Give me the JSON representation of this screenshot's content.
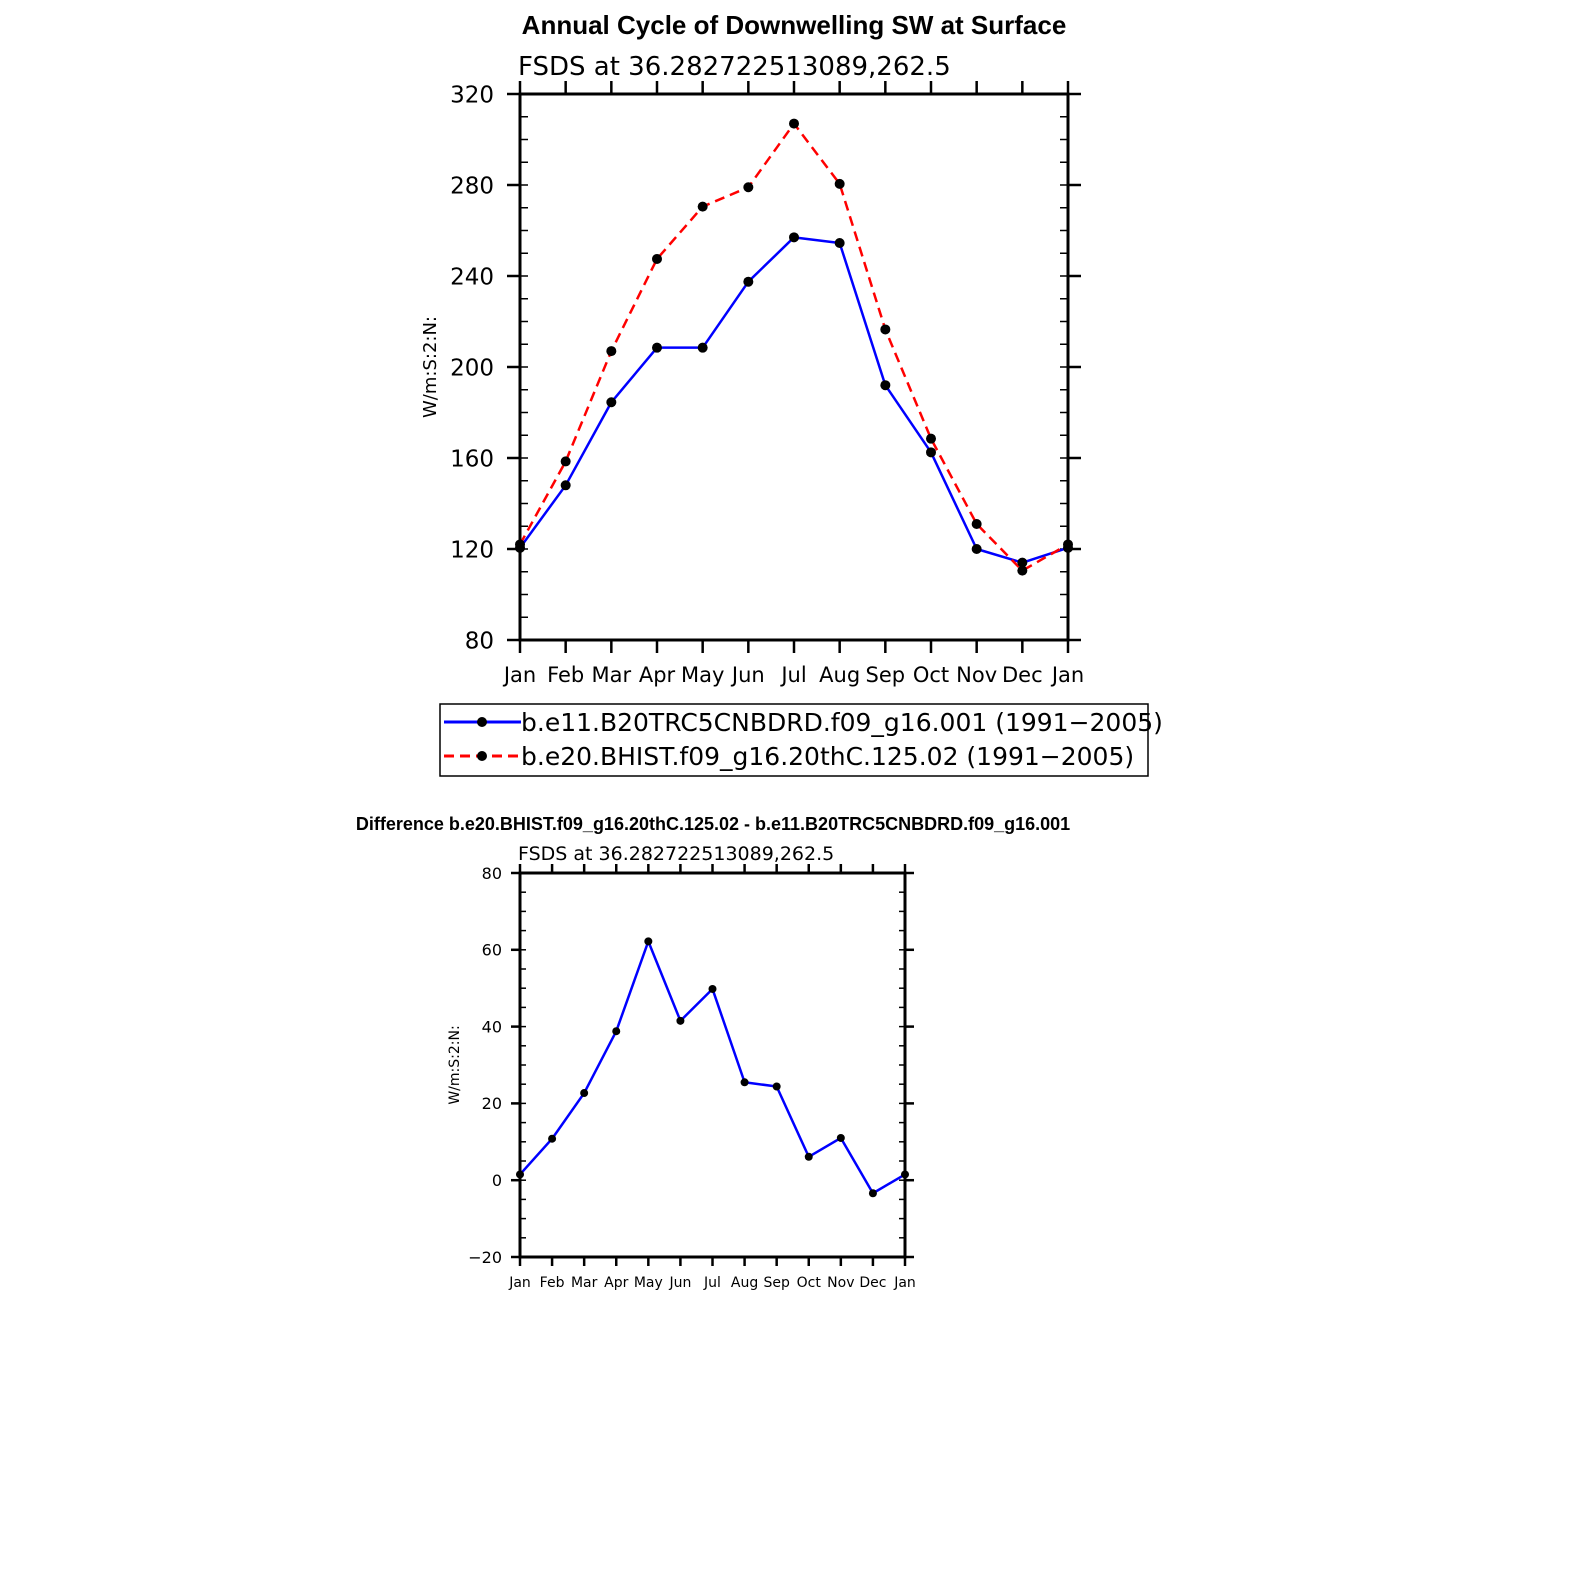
{
  "page": {
    "background": "#ffffff"
  },
  "colors": {
    "series1": "#0000ff",
    "series2": "#ff0000",
    "axis": "#000000",
    "marker": "#000000"
  },
  "chart_data": [
    {
      "type": "line",
      "title": "Annual Cycle of Downwelling SW at Surface",
      "subtitle": "FSDS at 36.282722513089,262.5",
      "ylabel": "W/m:S:2:N:",
      "xlabel": "",
      "categories": [
        "Jan",
        "Feb",
        "Mar",
        "Apr",
        "May",
        "Jun",
        "Jul",
        "Aug",
        "Sep",
        "Oct",
        "Nov",
        "Dec",
        "Jan"
      ],
      "ylim": [
        80,
        320
      ],
      "yticks": [
        80,
        120,
        160,
        200,
        240,
        280,
        320
      ],
      "grid": false,
      "legend": "bottom",
      "series": [
        {
          "name": "b.e11.B20TRC5CNBDRD.f09_g16.001 (1991−2005)",
          "style": "solid",
          "color": "#0000ff",
          "values": [
            120.5,
            148,
            184.5,
            208.5,
            208.5,
            237.5,
            257,
            254.5,
            192,
            162.5,
            120,
            114,
            120.5
          ]
        },
        {
          "name": "b.e20.BHIST.f09_g16.20thC.125.02 (1991−2005)",
          "style": "dashed",
          "color": "#ff0000",
          "values": [
            122,
            158.5,
            207,
            247.5,
            270.5,
            279,
            307,
            280.5,
            216.5,
            168.5,
            131,
            110.5,
            122
          ]
        }
      ]
    },
    {
      "type": "line",
      "title": "Difference b.e20.BHIST.f09_g16.20thC.125.02 - b.e11.B20TRC5CNBDRD.f09_g16.001",
      "subtitle": "FSDS at 36.282722513089,262.5",
      "ylabel": "W/m:S:2:N:",
      "xlabel": "",
      "categories": [
        "Jan",
        "Feb",
        "Mar",
        "Apr",
        "May",
        "Jun",
        "Jul",
        "Aug",
        "Sep",
        "Oct",
        "Nov",
        "Dec",
        "Jan"
      ],
      "ylim": [
        -20,
        80
      ],
      "yticks": [
        -20,
        0,
        20,
        40,
        60,
        80
      ],
      "ytick_labels": [
        "−20",
        "0",
        "20",
        "40",
        "60",
        "80"
      ],
      "grid": false,
      "series": [
        {
          "style": "solid",
          "color": "#0000ff",
          "values": [
            1.5,
            10.8,
            22.7,
            38.8,
            62.2,
            41.5,
            49.8,
            25.5,
            24.4,
            6.1,
            11,
            -3.4,
            1.5
          ]
        }
      ]
    }
  ]
}
